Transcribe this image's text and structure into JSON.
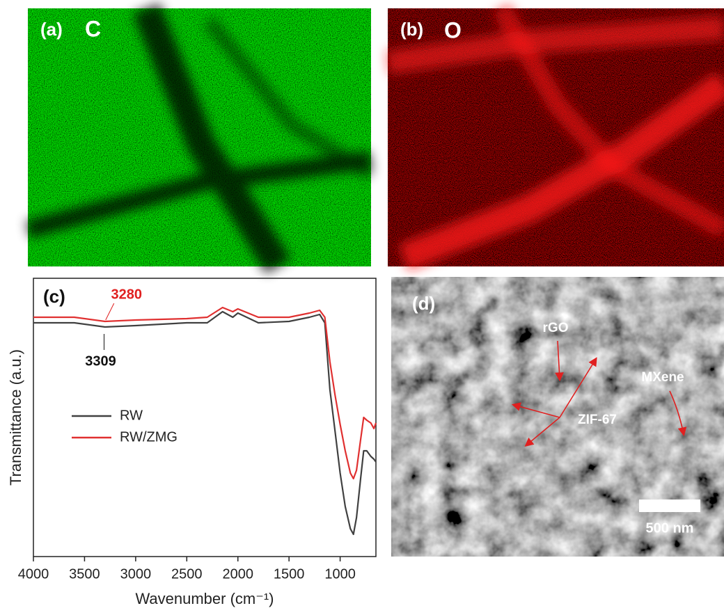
{
  "panels": {
    "a": {
      "label": "(a)",
      "element": "C"
    },
    "b": {
      "label": "(b)",
      "element": "O"
    },
    "d": {
      "label": "(d)",
      "annotations": [
        "rGO",
        "MXene",
        "ZIF-67"
      ],
      "scale_bar": "500 nm"
    }
  },
  "chart_data": {
    "type": "line",
    "label": "(c)",
    "x_label": "Wavenumber (cm⁻¹)",
    "y_label": "Transmittance (a.u.)",
    "x": [
      4000,
      3600,
      3300,
      3000,
      2500,
      2300,
      2150,
      2050,
      2000,
      1800,
      1500,
      1300,
      1200,
      1150,
      1100,
      1050,
      1000,
      950,
      900,
      870,
      840,
      800,
      770,
      740,
      700,
      670,
      650
    ],
    "series": [
      {
        "name": "RW",
        "color": "#404040",
        "values": [
          84,
          84,
          82.5,
          83,
          84,
          84,
          88,
          86,
          87.5,
          84,
          84.5,
          86,
          87,
          84,
          60,
          45,
          30,
          18,
          10,
          8,
          14,
          28,
          38,
          38,
          36,
          35,
          34
        ]
      },
      {
        "name": "RW/ZMG",
        "color": "#e03030",
        "values": [
          86,
          86,
          84.5,
          85,
          85.5,
          86,
          89.5,
          88,
          89,
          86,
          86,
          87.5,
          88.5,
          86,
          70,
          58,
          47.5,
          38,
          30,
          28,
          31,
          42,
          50,
          49,
          48,
          46,
          48
        ]
      }
    ],
    "xlim": [
      4000,
      650
    ],
    "ylim": [
      0,
      100
    ],
    "xticks": [
      4000,
      3500,
      3000,
      2500,
      2000,
      1500,
      1000
    ],
    "annotations": [
      {
        "x": 3280,
        "text": "3280",
        "color": "#e02020"
      },
      {
        "x": 3309,
        "text": "3309",
        "color": "#111111"
      }
    ],
    "legend": "left"
  }
}
